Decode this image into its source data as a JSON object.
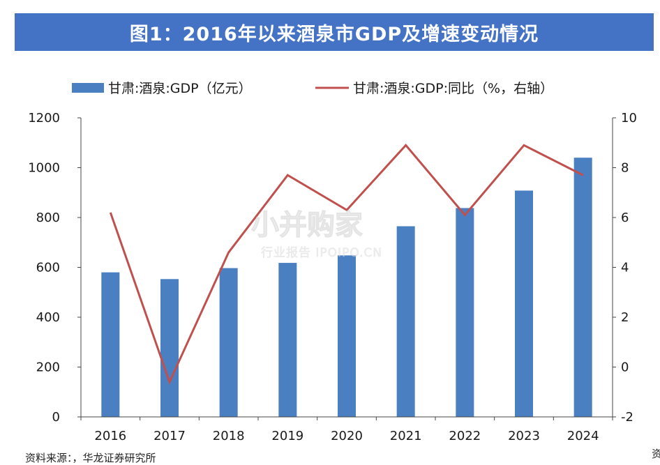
{
  "header": {
    "title": "图1：2016年以来酒泉市GDP及增速变动情况"
  },
  "colors": {
    "banner": "#4472c4",
    "bar": "#4a7fc1",
    "line": "#c0504d",
    "axis": "#444444"
  },
  "chart_data": {
    "type": "bar",
    "categories": [
      "2016",
      "2017",
      "2018",
      "2019",
      "2020",
      "2021",
      "2022",
      "2023",
      "2024"
    ],
    "series": [
      {
        "name": "甘肃:酒泉:GDP（亿元）",
        "type": "bar",
        "axis": "left",
        "values": [
          580,
          553,
          597,
          618,
          648,
          765,
          838,
          908,
          1040
        ]
      },
      {
        "name": "甘肃:酒泉:GDP:同比（%，右轴）",
        "type": "line",
        "axis": "right",
        "values": [
          6.2,
          -0.6,
          4.6,
          7.7,
          6.3,
          8.9,
          6.1,
          8.9,
          7.7
        ]
      }
    ],
    "y_left": {
      "min": 0,
      "max": 1200,
      "ticks": [
        0,
        200,
        400,
        600,
        800,
        1000,
        1200
      ]
    },
    "y_right": {
      "min": -2,
      "max": 10,
      "ticks": [
        -2,
        0,
        2,
        4,
        6,
        8,
        10
      ]
    },
    "legend_position": "top",
    "grid": false
  },
  "watermark": {
    "logo": "小并购家",
    "sub": "行业报告 IPOIPO.CN"
  },
  "source": "资料来源：，华龙证券研究所",
  "edge_char": "资"
}
